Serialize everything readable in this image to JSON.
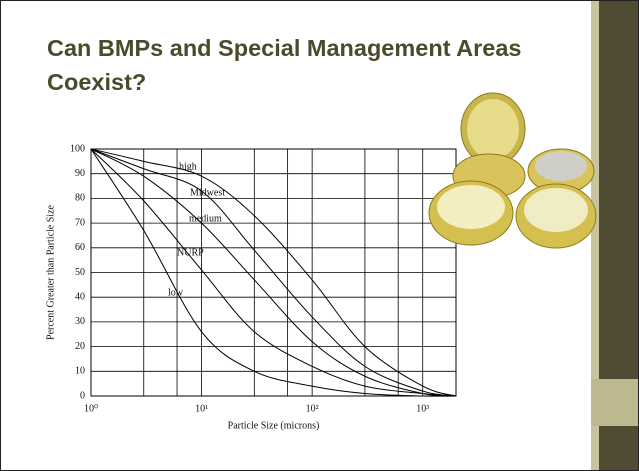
{
  "slide": {
    "title": "Can BMPs and Special Management Areas Coexist?"
  },
  "chart_data": {
    "type": "line",
    "log_x": true,
    "grid": true,
    "color": "#000000",
    "ylabel": "Percent Greater than Particle Size",
    "xlabel": "Particle Size (microns)",
    "x": [
      1,
      3,
      10,
      30,
      100,
      300,
      1000,
      2000
    ],
    "series": [
      {
        "name": "high",
        "color": "#000000",
        "values": [
          100,
          95,
          89,
          73,
          47,
          20,
          4,
          0
        ]
      },
      {
        "name": "Midwest",
        "color": "#000000",
        "values": [
          100,
          92,
          83,
          59,
          32,
          12,
          2,
          0
        ]
      },
      {
        "name": "medium",
        "color": "#000000",
        "values": [
          100,
          89,
          70,
          47,
          22,
          8,
          1,
          0
        ]
      },
      {
        "name": "NURP",
        "color": "#000000",
        "values": [
          100,
          79,
          51,
          26,
          12,
          4,
          1,
          0
        ]
      },
      {
        "name": "low",
        "color": "#000000",
        "values": [
          100,
          67,
          26,
          10,
          4,
          1,
          0,
          0
        ]
      }
    ],
    "xlim": [
      1,
      2000
    ],
    "xticks": [
      {
        "value": 1,
        "label": "10⁰"
      },
      {
        "value": 10,
        "label": "10¹"
      },
      {
        "value": 100,
        "label": "10²"
      },
      {
        "value": 1000,
        "label": "10³"
      }
    ],
    "xminor": [
      3,
      6,
      30,
      60,
      300,
      600,
      2000
    ],
    "ylim": [
      0,
      100
    ],
    "yticks": [
      0,
      10,
      20,
      30,
      40,
      50,
      60,
      70,
      80,
      90,
      100
    ]
  }
}
